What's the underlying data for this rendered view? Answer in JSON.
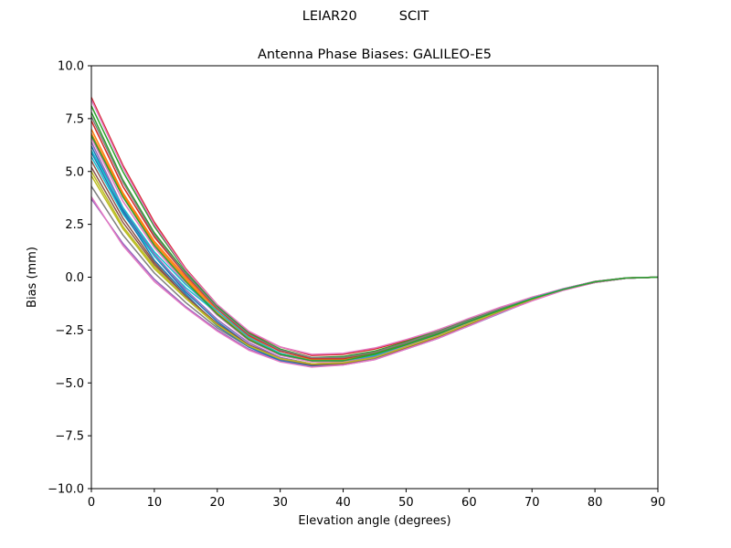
{
  "figure": {
    "suptitle": "LEIAR20          SCIT"
  },
  "chart_data": {
    "type": "line",
    "title": "Antenna Phase Biases: GALILEO-E5",
    "xlabel": "Elevation angle (degrees)",
    "ylabel": "Bias (mm)",
    "xlim": [
      0,
      90
    ],
    "ylim": [
      -10,
      10
    ],
    "xticks": [
      0,
      10,
      20,
      30,
      40,
      50,
      60,
      70,
      80,
      90
    ],
    "yticks": [
      -10.0,
      -7.5,
      -5.0,
      -2.5,
      0.0,
      2.5,
      5.0,
      7.5,
      10.0
    ],
    "xtick_labels": [
      "0",
      "10",
      "20",
      "30",
      "40",
      "50",
      "60",
      "70",
      "80",
      "90"
    ],
    "ytick_labels": [
      "−10.0",
      "−7.5",
      "−5.0",
      "−2.5",
      "0.0",
      "2.5",
      "5.0",
      "7.5",
      "10.0"
    ],
    "grid": false,
    "legend": "none",
    "x": [
      0,
      5,
      10,
      15,
      20,
      25,
      30,
      35,
      40,
      45,
      50,
      55,
      60,
      65,
      70,
      75,
      80,
      85,
      90
    ],
    "series": [
      {
        "color": "#1f77b4",
        "values": [
          6.2,
          3.2,
          1.0,
          -0.7,
          -2.1,
          -3.2,
          -3.9,
          -4.2,
          -4.1,
          -3.8,
          -3.4,
          -2.9,
          -2.3,
          -1.7,
          -1.1,
          -0.6,
          -0.25,
          -0.05,
          0.0
        ]
      },
      {
        "color": "#ff7f0e",
        "values": [
          7.0,
          4.0,
          1.7,
          0.0,
          -1.6,
          -2.8,
          -3.6,
          -3.9,
          -3.9,
          -3.6,
          -3.2,
          -2.7,
          -2.1,
          -1.6,
          -1.05,
          -0.6,
          -0.25,
          -0.05,
          0.0
        ]
      },
      {
        "color": "#2ca02c",
        "values": [
          7.8,
          4.6,
          2.1,
          0.2,
          -1.4,
          -2.7,
          -3.5,
          -3.85,
          -3.85,
          -3.6,
          -3.15,
          -2.65,
          -2.05,
          -1.5,
          -1.0,
          -0.55,
          -0.22,
          -0.04,
          0.0
        ]
      },
      {
        "color": "#d62728",
        "values": [
          8.5,
          5.3,
          2.6,
          0.4,
          -1.3,
          -2.6,
          -3.3,
          -3.7,
          -3.65,
          -3.4,
          -3.0,
          -2.5,
          -2.0,
          -1.45,
          -0.95,
          -0.55,
          -0.2,
          -0.03,
          0.0
        ]
      },
      {
        "color": "#9467bd",
        "values": [
          3.7,
          1.6,
          -0.1,
          -1.4,
          -2.5,
          -3.4,
          -3.95,
          -4.2,
          -4.15,
          -3.9,
          -3.4,
          -2.85,
          -2.25,
          -1.65,
          -1.1,
          -0.6,
          -0.25,
          -0.05,
          0.0
        ]
      },
      {
        "color": "#8c564b",
        "values": [
          5.2,
          2.6,
          0.6,
          -0.9,
          -2.2,
          -3.2,
          -3.8,
          -4.1,
          -4.05,
          -3.75,
          -3.3,
          -2.8,
          -2.2,
          -1.6,
          -1.05,
          -0.6,
          -0.22,
          -0.04,
          0.0
        ]
      },
      {
        "color": "#e377c2",
        "values": [
          6.6,
          3.6,
          1.4,
          -0.3,
          -1.8,
          -3.0,
          -3.7,
          -4.0,
          -4.0,
          -3.7,
          -3.25,
          -2.75,
          -2.15,
          -1.6,
          -1.05,
          -0.58,
          -0.23,
          -0.04,
          0.0
        ]
      },
      {
        "color": "#7f7f7f",
        "values": [
          4.3,
          2.0,
          0.2,
          -1.2,
          -2.4,
          -3.3,
          -3.9,
          -4.15,
          -4.1,
          -3.85,
          -3.35,
          -2.85,
          -2.25,
          -1.65,
          -1.1,
          -0.6,
          -0.24,
          -0.05,
          0.0
        ]
      },
      {
        "color": "#bcbd22",
        "values": [
          4.8,
          2.3,
          0.4,
          -1.0,
          -2.3,
          -3.25,
          -3.85,
          -4.1,
          -4.05,
          -3.8,
          -3.3,
          -2.8,
          -2.2,
          -1.6,
          -1.05,
          -0.6,
          -0.23,
          -0.04,
          0.0
        ]
      },
      {
        "color": "#17becf",
        "values": [
          5.7,
          3.0,
          1.0,
          -0.5,
          -1.7,
          -2.9,
          -3.65,
          -3.95,
          -3.95,
          -3.7,
          -3.2,
          -2.7,
          -2.1,
          -1.55,
          -1.0,
          -0.57,
          -0.22,
          -0.04,
          0.0
        ]
      },
      {
        "color": "#1f77b4",
        "values": [
          5.9,
          3.1,
          0.8,
          -0.8,
          -2.3,
          -3.3,
          -3.95,
          -4.2,
          -4.1,
          -3.8,
          -3.35,
          -2.85,
          -2.25,
          -1.65,
          -1.1,
          -0.6,
          -0.24,
          -0.05,
          0.0
        ]
      },
      {
        "color": "#ff7f0e",
        "values": [
          6.8,
          3.9,
          1.6,
          -0.1,
          -1.7,
          -2.9,
          -3.6,
          -3.95,
          -3.95,
          -3.65,
          -3.2,
          -2.7,
          -2.1,
          -1.55,
          -1.02,
          -0.58,
          -0.22,
          -0.04,
          0.0
        ]
      },
      {
        "color": "#2ca02c",
        "values": [
          8.1,
          5.0,
          2.4,
          0.3,
          -1.35,
          -2.65,
          -3.4,
          -3.8,
          -3.75,
          -3.5,
          -3.05,
          -2.55,
          -2.0,
          -1.45,
          -0.97,
          -0.55,
          -0.2,
          -0.03,
          0.0
        ]
      },
      {
        "color": "#d62728",
        "values": [
          7.4,
          4.3,
          1.9,
          0.1,
          -1.5,
          -2.75,
          -3.5,
          -3.85,
          -3.85,
          -3.55,
          -3.1,
          -2.6,
          -2.05,
          -1.5,
          -1.0,
          -0.56,
          -0.21,
          -0.04,
          0.0
        ]
      },
      {
        "color": "#9467bd",
        "values": [
          6.4,
          3.3,
          1.1,
          -0.6,
          -2.0,
          -3.1,
          -3.8,
          -4.1,
          -4.05,
          -3.75,
          -3.3,
          -2.8,
          -2.2,
          -1.6,
          -1.05,
          -0.6,
          -0.23,
          -0.04,
          0.0
        ]
      },
      {
        "color": "#8c564b",
        "values": [
          5.5,
          2.8,
          0.7,
          -0.9,
          -2.2,
          -3.2,
          -3.85,
          -4.15,
          -4.1,
          -3.8,
          -3.35,
          -2.85,
          -2.25,
          -1.65,
          -1.1,
          -0.6,
          -0.24,
          -0.05,
          0.0
        ]
      },
      {
        "color": "#e377c2",
        "values": [
          8.4,
          5.2,
          2.5,
          0.35,
          -1.3,
          -2.55,
          -3.3,
          -3.65,
          -3.6,
          -3.35,
          -2.95,
          -2.5,
          -1.95,
          -1.42,
          -0.95,
          -0.54,
          -0.2,
          -0.03,
          0.0
        ]
      },
      {
        "color": "#7f7f7f",
        "values": [
          7.6,
          4.5,
          2.0,
          0.15,
          -1.45,
          -2.7,
          -3.45,
          -3.8,
          -3.8,
          -3.55,
          -3.1,
          -2.6,
          -2.05,
          -1.5,
          -1.0,
          -0.56,
          -0.21,
          -0.04,
          0.0
        ]
      },
      {
        "color": "#bcbd22",
        "values": [
          5.0,
          2.4,
          0.5,
          -1.0,
          -2.25,
          -3.25,
          -3.85,
          -4.1,
          -4.05,
          -3.8,
          -3.3,
          -2.8,
          -2.2,
          -1.6,
          -1.05,
          -0.6,
          -0.23,
          -0.04,
          0.0
        ]
      },
      {
        "color": "#17becf",
        "values": [
          6.0,
          3.3,
          1.2,
          -0.35,
          -1.6,
          -2.85,
          -3.6,
          -3.95,
          -3.95,
          -3.7,
          -3.2,
          -2.7,
          -2.1,
          -1.55,
          -1.0,
          -0.57,
          -0.22,
          -0.04,
          0.0
        ]
      },
      {
        "color": "#e377c2",
        "values": [
          3.8,
          1.5,
          -0.2,
          -1.45,
          -2.55,
          -3.45,
          -4.0,
          -4.25,
          -4.15,
          -3.9,
          -3.4,
          -2.9,
          -2.3,
          -1.68,
          -1.12,
          -0.62,
          -0.25,
          -0.05,
          0.0
        ]
      },
      {
        "color": "#2ca02c",
        "values": [
          6.7,
          3.8,
          1.5,
          -0.2,
          -1.75,
          -2.95,
          -3.65,
          -3.95,
          -3.95,
          -3.65,
          -3.2,
          -2.7,
          -2.1,
          -1.55,
          -1.02,
          -0.58,
          -0.22,
          -0.04,
          0.0
        ]
      }
    ]
  }
}
